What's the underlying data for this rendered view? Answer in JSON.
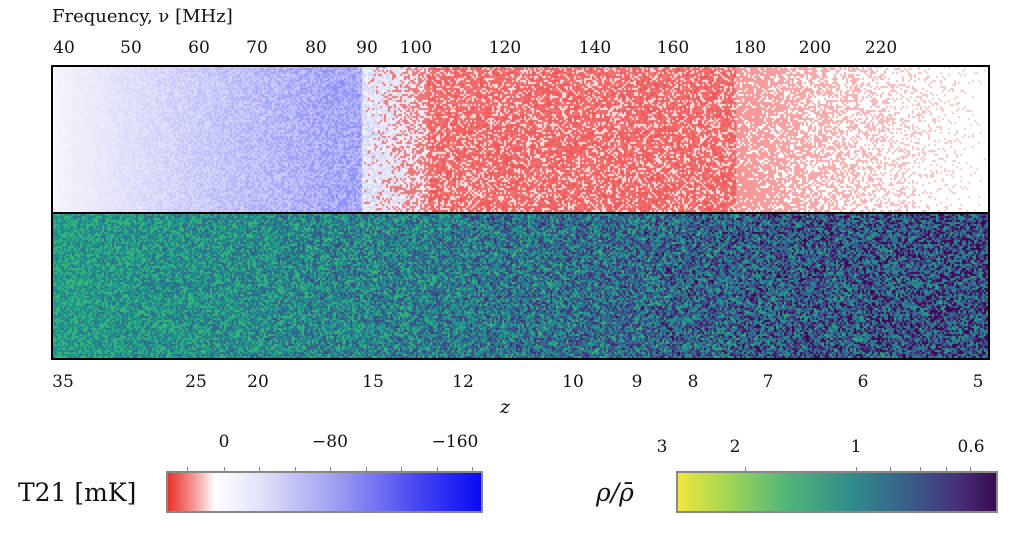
{
  "chart_data": {
    "type": "heatmap",
    "title": "",
    "top_axis": {
      "label": "Frequency, ν [MHz]",
      "ticks": [
        "40",
        "50",
        "60",
        "70",
        "80",
        "90",
        "100",
        "120",
        "140",
        "160",
        "180",
        "200",
        "220"
      ]
    },
    "bottom_axis": {
      "label": "z",
      "ticks": [
        "35",
        "25",
        "20",
        "15",
        "12",
        "10",
        "9",
        "8",
        "7",
        "6",
        "5"
      ]
    },
    "panels": [
      {
        "name": "T21 lightcone",
        "colormap": "red-white-blue"
      },
      {
        "name": "density lightcone",
        "colormap": "viridis"
      }
    ],
    "colorbars": [
      {
        "label": "T21 [mK]",
        "ticks": [
          "0",
          "−80",
          "−160"
        ],
        "range": [
          40,
          -180
        ],
        "colors": [
          "#e8322b",
          "#ffffff",
          "#0a0af5"
        ]
      },
      {
        "label": "ρ/ρ̄",
        "ticks": [
          "3",
          "2",
          "1",
          "0.6"
        ],
        "range": [
          3,
          0.6
        ],
        "scale": "log",
        "colors": [
          "#f0e63c",
          "#50b47a",
          "#3a5f8a",
          "#3a0a4f"
        ]
      }
    ]
  }
}
